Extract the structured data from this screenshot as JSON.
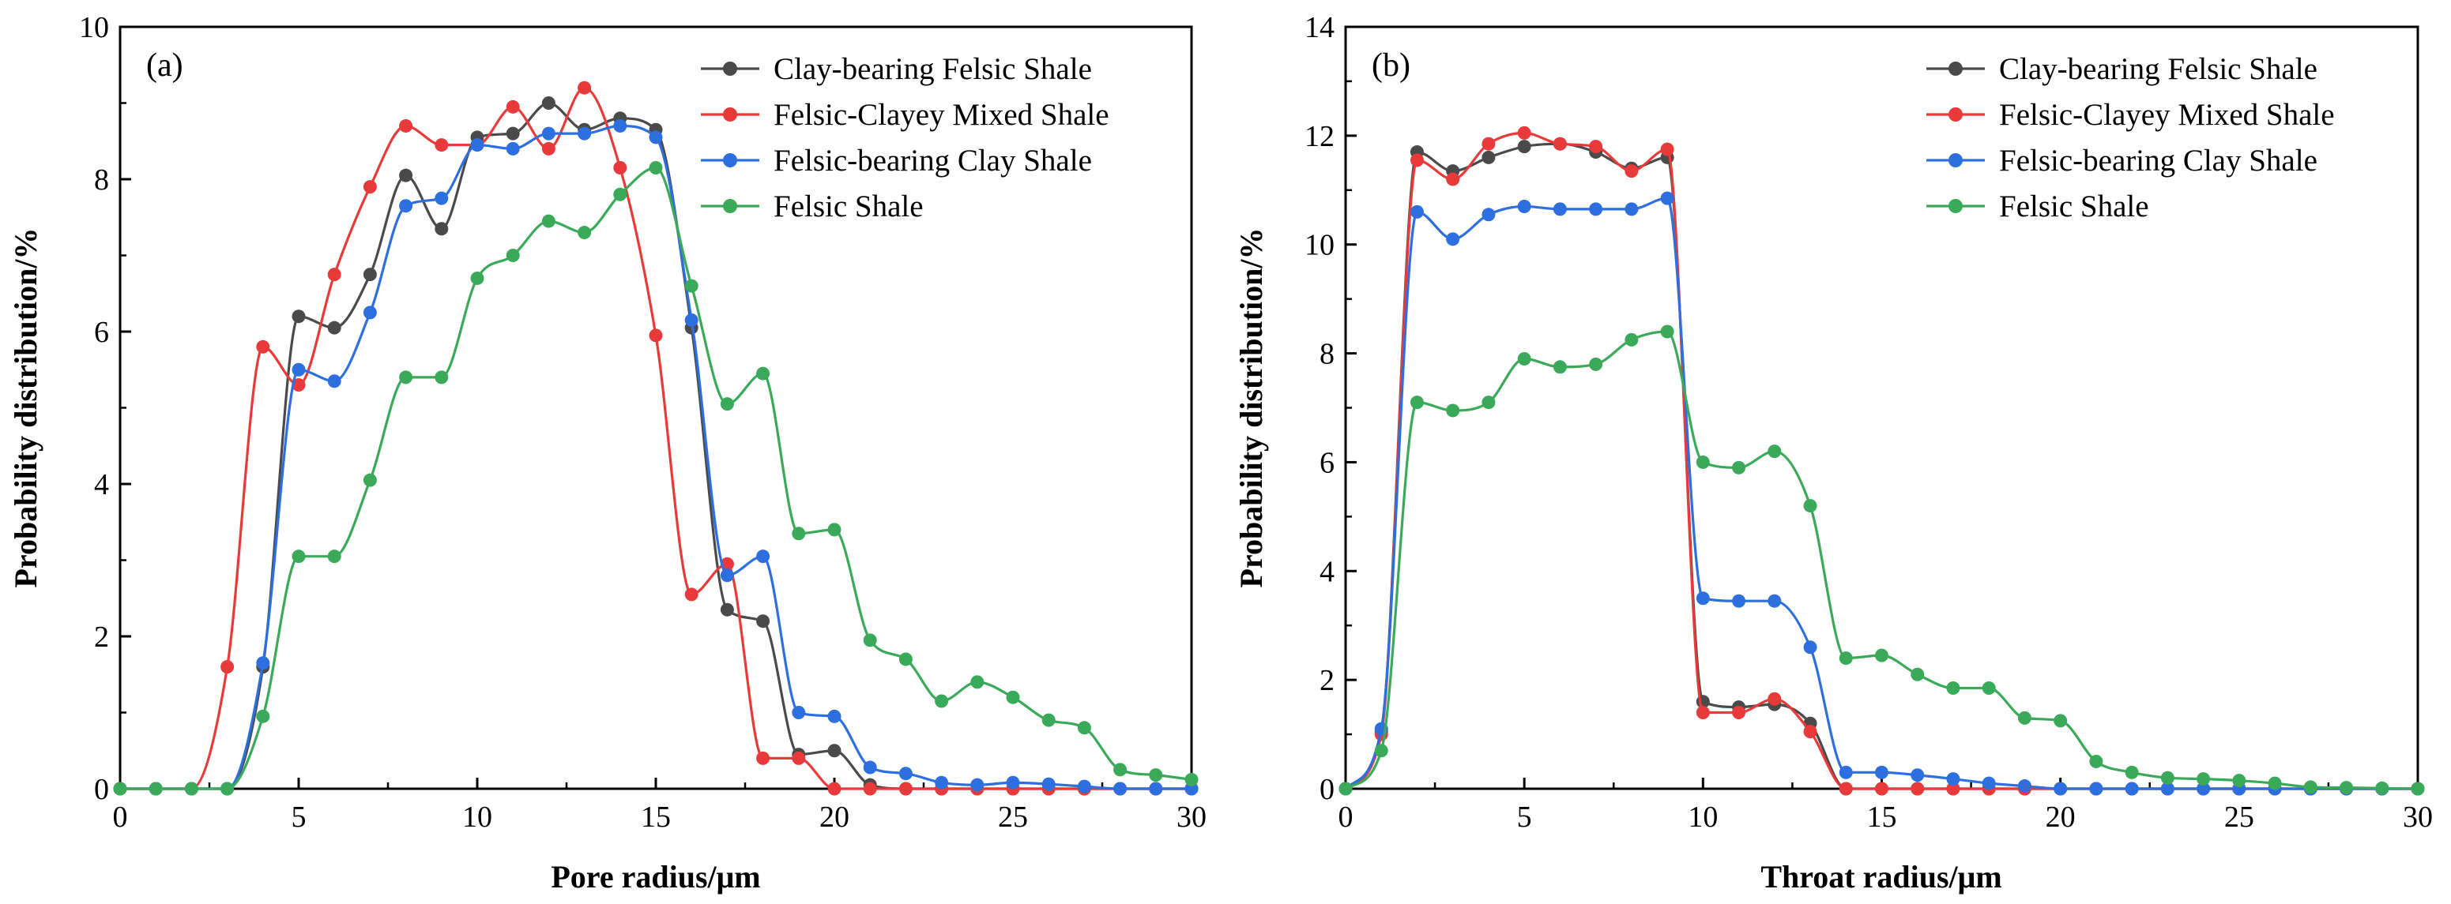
{
  "chart_data": [
    {
      "type": "line",
      "panel_label": "(a)",
      "xlabel": "Pore radius/μm",
      "ylabel": "Probability distribution/%",
      "xlim": [
        0,
        30
      ],
      "ylim": [
        0,
        10
      ],
      "xticks": [
        0,
        5,
        10,
        15,
        20,
        25,
        30
      ],
      "yticks": [
        0,
        2,
        4,
        6,
        8,
        10
      ],
      "legend_position": "top-right",
      "x": [
        0,
        1,
        2,
        3,
        4,
        5,
        6,
        7,
        8,
        9,
        10,
        11,
        12,
        13,
        14,
        15,
        16,
        17,
        18,
        19,
        20,
        21,
        22,
        23,
        24,
        25,
        26,
        27,
        28,
        29,
        30
      ],
      "series": [
        {
          "name": "Clay-bearing Felsic Shale",
          "color": "#4a4a4a",
          "values": [
            0,
            0,
            0,
            0,
            1.6,
            6.2,
            6.05,
            6.75,
            8.05,
            7.35,
            8.55,
            8.6,
            9.0,
            8.65,
            8.8,
            8.65,
            6.05,
            2.35,
            2.2,
            0.45,
            0.5,
            0.05,
            0,
            0,
            0,
            0,
            0,
            0,
            0,
            0,
            0
          ]
        },
        {
          "name": "Felsic-Clayey Mixed Shale",
          "color": "#e83a3a",
          "values": [
            0,
            0,
            0,
            1.6,
            5.8,
            5.3,
            6.75,
            7.9,
            8.7,
            8.45,
            8.45,
            8.95,
            8.4,
            9.2,
            8.15,
            5.95,
            2.55,
            2.95,
            0.4,
            0.4,
            0,
            0,
            0,
            0,
            0,
            0,
            0,
            0,
            0,
            0,
            0
          ]
        },
        {
          "name": "Felsic-bearing Clay Shale",
          "color": "#2e6fe0",
          "values": [
            0,
            0,
            0,
            0,
            1.65,
            5.5,
            5.35,
            6.25,
            7.65,
            7.75,
            8.45,
            8.4,
            8.6,
            8.6,
            8.7,
            8.55,
            6.15,
            2.8,
            3.05,
            1.0,
            0.95,
            0.28,
            0.2,
            0.08,
            0.05,
            0.08,
            0.06,
            0.03,
            0,
            0,
            0
          ]
        },
        {
          "name": "Felsic Shale",
          "color": "#3aaa5a",
          "values": [
            0,
            0,
            0,
            0,
            0.95,
            3.05,
            3.05,
            4.05,
            5.4,
            5.4,
            6.7,
            7.0,
            7.45,
            7.3,
            7.8,
            8.15,
            6.6,
            5.05,
            5.45,
            3.35,
            3.4,
            1.95,
            1.7,
            1.15,
            1.4,
            1.2,
            0.9,
            0.8,
            0.25,
            0.18,
            0.12
          ]
        }
      ]
    },
    {
      "type": "line",
      "panel_label": "(b)",
      "xlabel": "Throat radius/μm",
      "ylabel": "Probability distribution/%",
      "xlim": [
        0,
        30
      ],
      "ylim": [
        0,
        14
      ],
      "xticks": [
        0,
        5,
        10,
        15,
        20,
        25,
        30
      ],
      "yticks": [
        0,
        2,
        4,
        6,
        8,
        10,
        12,
        14
      ],
      "legend_position": "top-right",
      "x": [
        0,
        1,
        2,
        3,
        4,
        5,
        6,
        7,
        8,
        9,
        10,
        11,
        12,
        13,
        14,
        15,
        16,
        17,
        18,
        19,
        20,
        21,
        22,
        23,
        24,
        25,
        26,
        27,
        28,
        29,
        30
      ],
      "series": [
        {
          "name": "Clay-bearing Felsic Shale",
          "color": "#4a4a4a",
          "values": [
            0,
            1.05,
            11.7,
            11.35,
            11.6,
            11.8,
            11.85,
            11.7,
            11.4,
            11.6,
            1.6,
            1.5,
            1.55,
            1.2,
            0,
            0,
            0,
            0,
            0,
            0,
            0,
            0,
            0,
            0,
            0,
            0,
            0,
            0,
            0,
            0,
            0
          ]
        },
        {
          "name": "Felsic-Clayey Mixed Shale",
          "color": "#e83a3a",
          "values": [
            0,
            1.0,
            11.55,
            11.2,
            11.85,
            12.05,
            11.85,
            11.8,
            11.35,
            11.75,
            1.4,
            1.4,
            1.65,
            1.05,
            0,
            0,
            0,
            0,
            0,
            0,
            0,
            0,
            0,
            0,
            0,
            0,
            0,
            0,
            0,
            0,
            0
          ]
        },
        {
          "name": "Felsic-bearing Clay Shale",
          "color": "#2e6fe0",
          "values": [
            0,
            1.1,
            10.6,
            10.1,
            10.55,
            10.7,
            10.65,
            10.65,
            10.65,
            10.85,
            3.5,
            3.45,
            3.45,
            2.6,
            0.3,
            0.3,
            0.25,
            0.18,
            0.1,
            0.05,
            0,
            0,
            0,
            0,
            0,
            0,
            0,
            0,
            0,
            0,
            0
          ]
        },
        {
          "name": "Felsic Shale",
          "color": "#3aaa5a",
          "values": [
            0,
            0.7,
            7.1,
            6.95,
            7.1,
            7.9,
            7.75,
            7.8,
            8.25,
            8.4,
            6.0,
            5.9,
            6.2,
            5.2,
            2.4,
            2.45,
            2.1,
            1.85,
            1.85,
            1.3,
            1.25,
            0.5,
            0.3,
            0.2,
            0.18,
            0.15,
            0.1,
            0.03,
            0.02,
            0.01,
            0
          ]
        }
      ]
    }
  ]
}
